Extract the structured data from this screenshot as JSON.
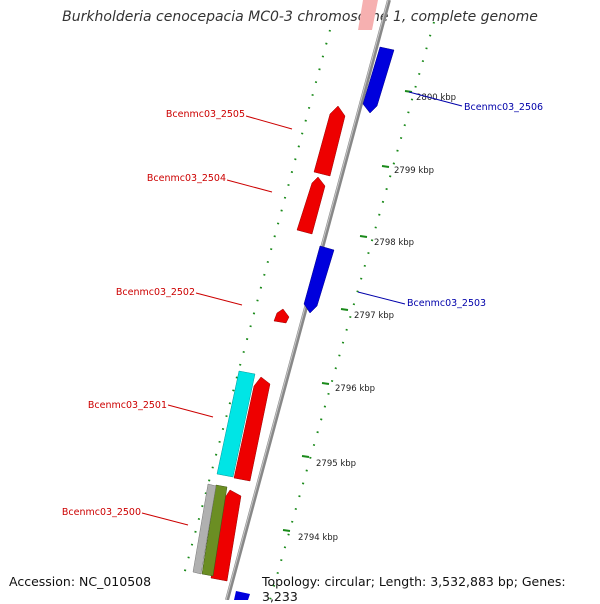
{
  "header": {
    "title": "Burkholderia cenocepacia MC0-3 chromosome 1, complete genome"
  },
  "footer": {
    "accession": "Accession: NC_010508",
    "summary": "Topology: circular; Length: 3,532,883 bp; Genes: 3,233"
  },
  "genes": [
    {
      "label": "Bcenmc03_2506",
      "strand": "reverse",
      "color": "#0000dd"
    },
    {
      "label": "Bcenmc03_2505",
      "strand": "forward",
      "color": "#ee0000"
    },
    {
      "label": "Bcenmc03_2504",
      "strand": "forward",
      "color": "#ee0000"
    },
    {
      "label": "Bcenmc03_2503",
      "strand": "reverse",
      "color": "#0000dd"
    },
    {
      "label": "Bcenmc03_2502",
      "strand": "forward",
      "color": "#ee0000"
    },
    {
      "label": "Bcenmc03_2501",
      "strand": "forward",
      "color": "#ee0000"
    },
    {
      "label": "Bcenmc03_2500",
      "strand": "forward",
      "color": "#ee0000"
    }
  ],
  "scale": {
    "ticks": [
      "2800 kbp",
      "2799 kbp",
      "2798 kbp",
      "2797 kbp",
      "2796 kbp",
      "2795 kbp",
      "2794 kbp"
    ],
    "tick_color": "#1a8a1a"
  },
  "colors": {
    "backbone": "#888888",
    "forward_gene": "#ee0000",
    "reverse_gene": "#0000dd",
    "extra_feature": "#00e5e5",
    "olive_feature": "#6b8e23",
    "gray_feature": "#b0b0b0",
    "label_forward": "#cc0000",
    "label_reverse": "#0000aa"
  }
}
